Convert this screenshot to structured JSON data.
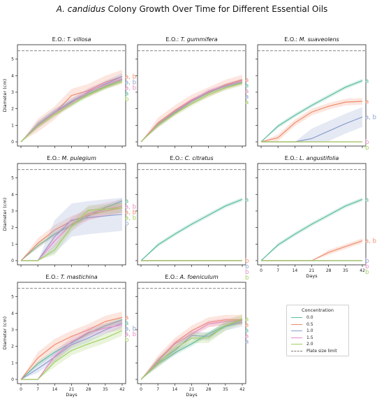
{
  "title_prefix": "A. candidus",
  "title_suffix": " Colony Growth Over Time for Different Essential Oils",
  "legend": {
    "title": "Concentration",
    "items": [
      {
        "label": "0.0",
        "color": "#5bbc9f"
      },
      {
        "label": "0.5",
        "color": "#f08c6c"
      },
      {
        "label": "1.0",
        "color": "#8a9dcb"
      },
      {
        "label": "1.5",
        "color": "#e38bc2"
      },
      {
        "label": "2.0",
        "color": "#9fcf5f"
      }
    ],
    "limit_label": "Plate size limit"
  },
  "chart_data": {
    "type": "line",
    "x": [
      0,
      7,
      14,
      21,
      28,
      35,
      42
    ],
    "xlabel": "Days",
    "ylabel": "Diameter (cm)",
    "ylim": [
      0,
      5.5
    ],
    "plate_limit": 5.5,
    "panels": [
      {
        "title_prefix": "E.O.: ",
        "title_species": "T. villosa",
        "series": [
          {
            "name": "0.0",
            "values": [
              0,
              1.05,
              1.8,
              2.4,
              2.9,
              3.35,
              3.75
            ],
            "band": 0.15
          },
          {
            "name": "0.5",
            "values": [
              0,
              1.0,
              1.75,
              2.8,
              3.1,
              3.6,
              3.95
            ],
            "band": 0.4
          },
          {
            "name": "1.0",
            "values": [
              0,
              1.05,
              1.8,
              2.45,
              3.0,
              3.5,
              3.95
            ],
            "band": 0.2
          },
          {
            "name": "1.5",
            "values": [
              0,
              1.0,
              1.75,
              2.35,
              3.05,
              3.45,
              3.8
            ],
            "band": 0.2
          },
          {
            "name": "2.0",
            "values": [
              0,
              0.95,
              1.65,
              2.25,
              2.85,
              3.3,
              3.65
            ],
            "band": 0.15
          }
        ],
        "letters": [
          "a",
          "a, b",
          "a, b",
          "a, b",
          "b"
        ]
      },
      {
        "title_prefix": "E.O.: ",
        "title_species": "T. gummifera",
        "series": [
          {
            "name": "0.0",
            "values": [
              0,
              1.05,
              1.8,
              2.45,
              2.95,
              3.4,
              3.7
            ],
            "band": 0.12
          },
          {
            "name": "0.5",
            "values": [
              0,
              1.15,
              1.9,
              2.55,
              3.0,
              3.45,
              3.75
            ],
            "band": 0.3
          },
          {
            "name": "1.0",
            "values": [
              0,
              1.0,
              1.75,
              2.45,
              3.05,
              3.35,
              3.6
            ],
            "band": 0.1
          },
          {
            "name": "1.5",
            "values": [
              0,
              1.1,
              1.85,
              2.5,
              3.05,
              3.4,
              3.7
            ],
            "band": 0.12
          },
          {
            "name": "2.0",
            "values": [
              0,
              1.0,
              1.7,
              2.3,
              2.85,
              3.25,
              3.55
            ],
            "band": 0.15
          }
        ],
        "letters": [
          "a",
          "a",
          "a",
          "a",
          "a"
        ]
      },
      {
        "title_prefix": "E.O.: ",
        "title_species": "M. suaveolens",
        "series": [
          {
            "name": "0.0",
            "values": [
              0,
              0.95,
              1.6,
              2.2,
              2.75,
              3.3,
              3.7
            ],
            "band": 0.12
          },
          {
            "name": "0.5",
            "values": [
              0,
              0.25,
              1.15,
              1.8,
              2.15,
              2.4,
              2.45
            ],
            "band": 0.2
          },
          {
            "name": "1.0",
            "values": [
              0,
              0,
              0,
              0.2,
              0.65,
              1.1,
              1.5
            ],
            "band": 0.6
          },
          {
            "name": "1.5",
            "values": [
              0,
              0,
              0,
              0,
              0,
              0,
              0
            ],
            "band": 0
          },
          {
            "name": "2.0",
            "values": [
              0,
              0,
              0,
              0,
              0,
              0,
              0
            ],
            "band": 0
          }
        ],
        "letters": [
          "a",
          "a",
          "a, b",
          "b",
          "b"
        ]
      },
      {
        "title_prefix": "E.O.: ",
        "title_species": "M. pulegium",
        "series": [
          {
            "name": "0.0",
            "values": [
              0,
              0.9,
              1.6,
              2.15,
              2.7,
              3.2,
              3.6
            ],
            "band": 0.15
          },
          {
            "name": "0.5",
            "values": [
              0,
              1.05,
              1.85,
              2.4,
              2.75,
              3.0,
              3.2
            ],
            "band": 0.3
          },
          {
            "name": "1.0",
            "values": [
              0,
              0,
              1.45,
              2.45,
              2.6,
              2.7,
              2.8
            ],
            "band": 1.0
          },
          {
            "name": "1.5",
            "values": [
              0,
              0,
              1.2,
              2.2,
              2.85,
              3.1,
              3.3
            ],
            "band": 0.4
          },
          {
            "name": "2.0",
            "values": [
              0,
              0,
              0.65,
              2.05,
              3.05,
              3.1,
              3.2
            ],
            "band": 0.3
          }
        ],
        "letters": [
          "a",
          "a, b",
          "b",
          "a, b",
          "a, b"
        ]
      },
      {
        "title_prefix": "E.O.: ",
        "title_species": "C. citratus",
        "series": [
          {
            "name": "0.0",
            "values": [
              0,
              0.95,
              1.6,
              2.2,
              2.75,
              3.3,
              3.7
            ],
            "band": 0.12
          },
          {
            "name": "0.5",
            "values": [
              0,
              0,
              0,
              0,
              0,
              0,
              0
            ],
            "band": 0
          },
          {
            "name": "1.0",
            "values": [
              0,
              0,
              0,
              0,
              0,
              0,
              0
            ],
            "band": 0
          },
          {
            "name": "1.5",
            "values": [
              0,
              0,
              0,
              0,
              0,
              0,
              0
            ],
            "band": 0
          },
          {
            "name": "2.0",
            "values": [
              0,
              0,
              0,
              0,
              0,
              0,
              0
            ],
            "band": 0
          }
        ],
        "letters": [
          "a",
          "b",
          "b",
          "b",
          "b"
        ]
      },
      {
        "title_prefix": "E.O.: ",
        "title_species": "L. angustifolia",
        "series": [
          {
            "name": "0.0",
            "values": [
              0,
              0.95,
              1.6,
              2.2,
              2.75,
              3.3,
              3.7
            ],
            "band": 0.12
          },
          {
            "name": "0.5",
            "values": [
              0,
              0,
              0,
              0,
              0.5,
              0.85,
              1.2
            ],
            "band": 0.15
          },
          {
            "name": "1.0",
            "values": [
              0,
              0,
              0,
              0,
              0,
              0,
              0
            ],
            "band": 0
          },
          {
            "name": "1.5",
            "values": [
              0,
              0,
              0,
              0,
              0,
              0,
              0
            ],
            "band": 0
          },
          {
            "name": "2.0",
            "values": [
              0,
              0,
              0,
              0,
              0,
              0,
              0
            ],
            "band": 0
          }
        ],
        "letters": [
          "a",
          "a, b",
          "b",
          "b",
          "b"
        ]
      },
      {
        "title_prefix": "E.O.: ",
        "title_species": "T. mastichina",
        "series": [
          {
            "name": "0.0",
            "values": [
              0,
              0.95,
              1.65,
              2.2,
              2.8,
              3.25,
              3.6
            ],
            "band": 0.15
          },
          {
            "name": "0.5",
            "values": [
              0,
              1.3,
              2.1,
              2.6,
              3.0,
              3.5,
              3.75
            ],
            "band": 0.35
          },
          {
            "name": "1.0",
            "values": [
              0,
              0.65,
              1.35,
              2.1,
              2.5,
              3.0,
              3.4
            ],
            "band": 0.25
          },
          {
            "name": "1.5",
            "values": [
              0,
              0,
              1.4,
              2.25,
              2.85,
              3.1,
              3.3
            ],
            "band": 0.3
          },
          {
            "name": "2.0",
            "values": [
              0,
              0,
              1.05,
              1.75,
              2.15,
              2.5,
              2.95
            ],
            "band": 0.3
          }
        ],
        "letters": [
          "a",
          "a",
          "a, b",
          "a, b",
          "b"
        ]
      },
      {
        "title_prefix": "E.O.: ",
        "title_species": "A. foeniculum",
        "series": [
          {
            "name": "0.0",
            "values": [
              0,
              0.95,
              1.6,
              2.15,
              2.75,
              3.25,
              3.55
            ],
            "band": 0.15
          },
          {
            "name": "0.5",
            "values": [
              0,
              1.15,
              2.2,
              2.95,
              3.45,
              3.6,
              3.6
            ],
            "band": 0.3
          },
          {
            "name": "1.0",
            "values": [
              0,
              1.05,
              1.75,
              2.65,
              2.6,
              3.2,
              3.45
            ],
            "band": 0.25
          },
          {
            "name": "1.5",
            "values": [
              0,
              1.1,
              2.15,
              2.75,
              3.35,
              3.5,
              3.55
            ],
            "band": 0.2
          },
          {
            "name": "2.0",
            "values": [
              0,
              1.0,
              1.85,
              2.5,
              2.5,
              3.25,
              3.65
            ],
            "band": 0.3
          }
        ],
        "letters": [
          "a",
          "a",
          "a",
          "a",
          "a"
        ]
      }
    ]
  }
}
